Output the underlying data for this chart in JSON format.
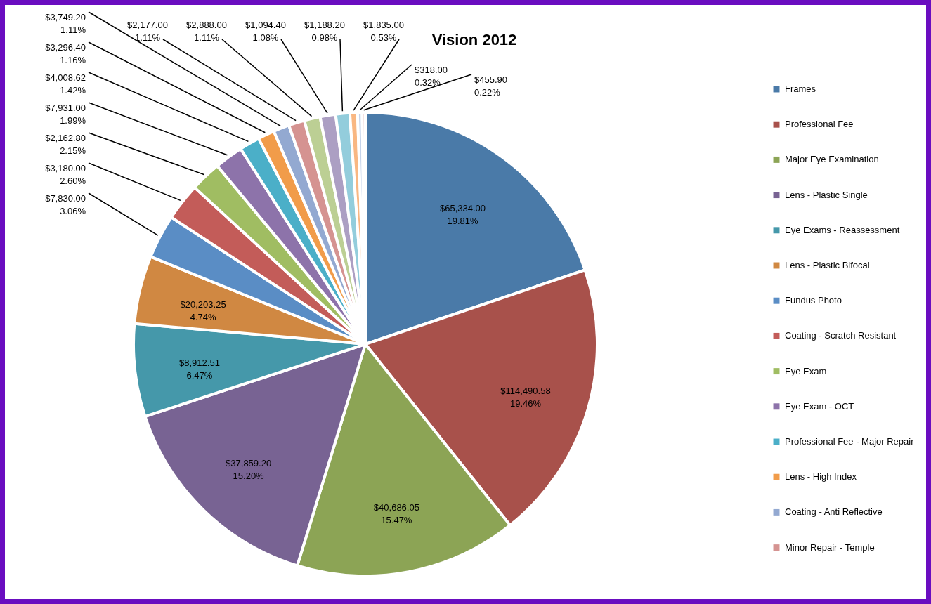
{
  "chart_data": {
    "type": "pie",
    "title": "Vision 2012",
    "legend": "right",
    "categories": [
      "Frames",
      "Professional Fee",
      "Major Eye Examination",
      "Lens - Plastic Single",
      "Eye Exams - Reassessment",
      "Lens - Plastic Bifocal",
      "Fundus Photo",
      "Coating - Scratch Resistant",
      "Eye Exam",
      "Eye Exam - OCT",
      "Professional Fee - Major Repair",
      "Lens - High Index",
      "Coating - Anti Reflective",
      "Minor Repair - Temple",
      null,
      null,
      null,
      null,
      null,
      null
    ],
    "values": [
      19.81,
      19.46,
      15.47,
      15.2,
      6.47,
      4.74,
      3.06,
      2.6,
      2.15,
      1.99,
      1.42,
      1.16,
      1.11,
      1.11,
      1.11,
      1.08,
      0.98,
      0.53,
      0.32,
      0.22
    ],
    "colors": [
      "#4a7aa8",
      "#a8514b",
      "#8ca455",
      "#786393",
      "#4598aa",
      "#d08842",
      "#5a8dc5",
      "#c35c59",
      "#a0bd62",
      "#8d73aa",
      "#4bafc8",
      "#f19c4a",
      "#93a9d1",
      "#d59391",
      "#bccf94",
      "#ac9fc3",
      "#93cddc",
      "#f9b782",
      "#c5d3ea",
      "#e8c4c3"
    ],
    "value_labels": [
      "$65,334.00\n19.81%",
      "$114,490.58\n19.46%",
      "$40,686.05\n15.47%",
      "$37,859.20\n15.20%",
      "$8,912.51\n6.47%",
      "$20,203.25\n4.74%",
      "$7,830.00\n3.06%",
      "$3,180.00\n2.60%",
      "$2,162.80\n2.15%",
      "$7,931.00\n1.99%",
      "$4,008.62\n1.42%",
      "$3,296.40\n1.16%",
      "$3,749.20\n1.11%",
      "$2,177.00\n1.11%",
      "$2,888.00\n1.11%",
      "$1,094.40\n1.08%",
      "$1,188.20\n0.98%",
      "$1,835.00\n0.53%",
      "$318.00\n0.32%",
      "$455.90\n0.22%"
    ]
  }
}
